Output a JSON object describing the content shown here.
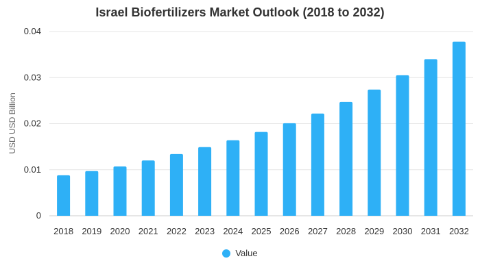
{
  "chart_data": {
    "type": "bar",
    "title": "Israel Biofertilizers Market Outlook (2018 to 2032)",
    "xlabel": "",
    "ylabel": "USD USD Billion",
    "categories": [
      "2018",
      "2019",
      "2020",
      "2021",
      "2022",
      "2023",
      "2024",
      "2025",
      "2026",
      "2027",
      "2028",
      "2029",
      "2030",
      "2031",
      "2032"
    ],
    "series": [
      {
        "name": "Value",
        "values": [
          0.0088,
          0.0097,
          0.0107,
          0.012,
          0.0134,
          0.0149,
          0.0164,
          0.0182,
          0.0201,
          0.0222,
          0.0247,
          0.0274,
          0.0305,
          0.034,
          0.0378
        ]
      }
    ],
    "ylim": [
      0,
      0.04
    ],
    "yticks": [
      "0",
      "0.01",
      "0.02",
      "0.03",
      "0.04"
    ],
    "grid": true,
    "legend": "bottom",
    "colors": {
      "bar": "#2eb0f6",
      "grid": "#e6e6e6",
      "text": "#333333"
    }
  }
}
